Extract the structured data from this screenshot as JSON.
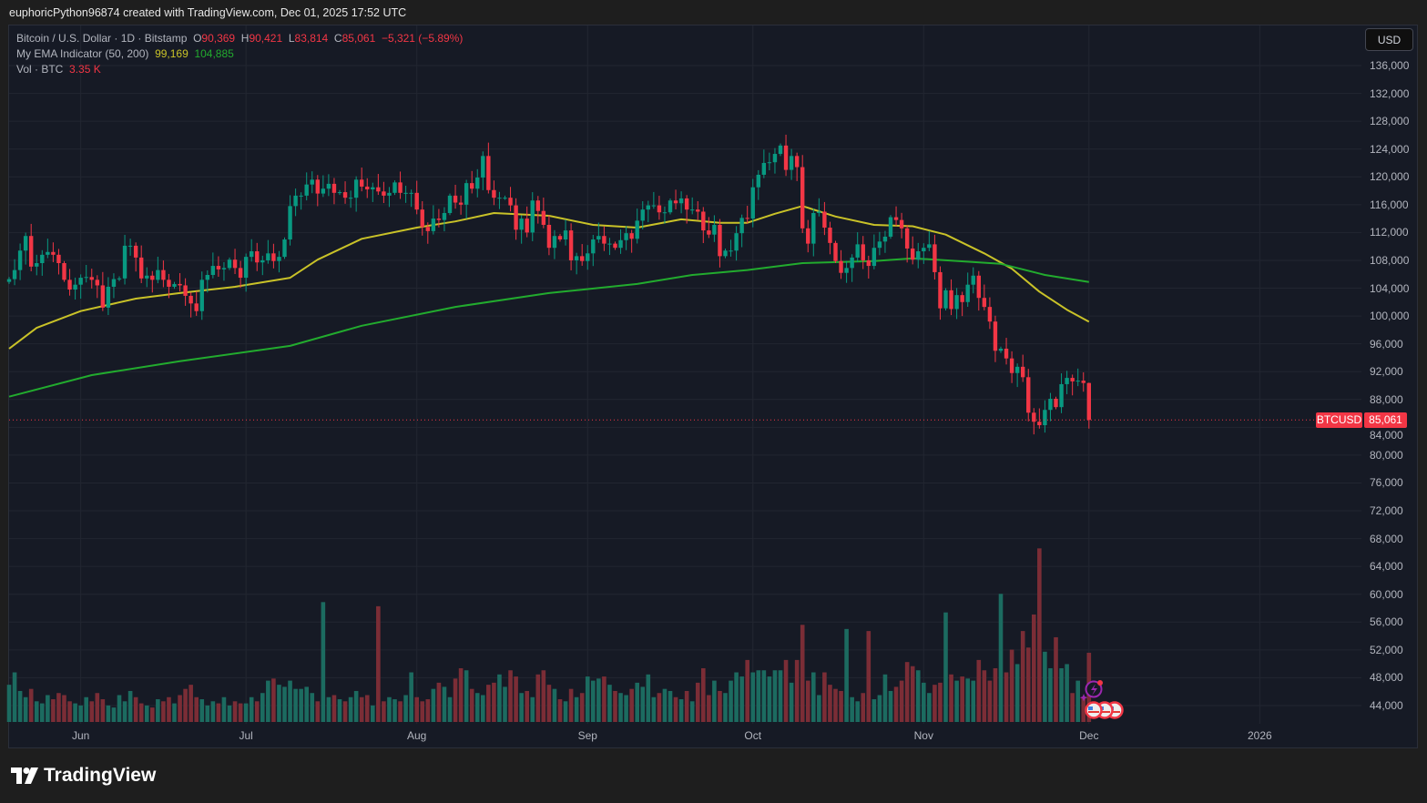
{
  "header": {
    "created_line": "euphoricPython96874 created with TradingView.com, Dec 01, 2025 17:52 UTC"
  },
  "legend": {
    "symbol": "Bitcoin / U.S. Dollar · 1D · Bitstamp",
    "o_label": "O",
    "o": "90,369",
    "h_label": "H",
    "h": "90,421",
    "l_label": "L",
    "l": "83,814",
    "c_label": "C",
    "c": "85,061",
    "change": "−5,321 (−5.89%)",
    "ema_name": "My EMA Indicator (50, 200)",
    "ema50": "99,169",
    "ema200": "104,885",
    "vol_name": "Vol · BTC",
    "vol": "3.35 K"
  },
  "currency_button": "USD",
  "price_label": {
    "symbol": "BTCUSD",
    "value": "85,061"
  },
  "brand": "TradingView",
  "colors": {
    "up": "#089981",
    "down": "#f23645",
    "ema50": "#c9c228",
    "ema200": "#22ab2e",
    "background": "#161a25",
    "grid": "#222631"
  },
  "chart_data": {
    "type": "candlestick",
    "title": "Bitcoin / U.S. Dollar · 1D · Bitstamp",
    "ylim": [
      42000,
      138000
    ],
    "grid": true,
    "y_ticks": [
      "136,000",
      "132,000",
      "128,000",
      "124,000",
      "120,000",
      "116,000",
      "112,000",
      "108,000",
      "104,000",
      "100,000",
      "96,000",
      "92,000",
      "88,000",
      "84,000",
      "80,000",
      "76,000",
      "72,000",
      "68,000",
      "64,000",
      "60,000",
      "56,000",
      "52,000",
      "48,000",
      "44,000"
    ],
    "x_ticks": [
      {
        "label": "Jun",
        "date": "2025-06-01"
      },
      {
        "label": "Jul",
        "date": "2025-07-01"
      },
      {
        "label": "Aug",
        "date": "2025-08-01"
      },
      {
        "label": "Sep",
        "date": "2025-09-01"
      },
      {
        "label": "Oct",
        "date": "2025-10-01"
      },
      {
        "label": "Nov",
        "date": "2025-11-01"
      },
      {
        "label": "Dec",
        "date": "2025-12-01"
      },
      {
        "label": "2026",
        "date": "2026-01-01"
      }
    ],
    "last_candle": {
      "open": 90369,
      "high": 90421,
      "low": 83814,
      "close": 85061
    },
    "close": [
      105300,
      106600,
      109400,
      111500,
      107100,
      107600,
      108800,
      109200,
      108800,
      107600,
      105200,
      103800,
      104500,
      105500,
      105600,
      105200,
      104400,
      101200,
      104200,
      105300,
      105400,
      110100,
      110100,
      108400,
      105400,
      105800,
      105200,
      106600,
      105200,
      104200,
      104600,
      104400,
      102900,
      101800,
      100700,
      105200,
      105900,
      107200,
      106700,
      106900,
      108100,
      106900,
      105500,
      108500,
      109300,
      107700,
      108000,
      109000,
      107900,
      108500,
      111000,
      115800,
      117300,
      117300,
      118900,
      119600,
      117600,
      118300,
      119000,
      117700,
      117800,
      117000,
      117000,
      119600,
      118600,
      118200,
      118500,
      117900,
      117300,
      117700,
      119200,
      117700,
      117700,
      117700,
      115300,
      112800,
      112200,
      114000,
      113800,
      114800,
      117300,
      116300,
      116000,
      119100,
      118300,
      119900,
      123000,
      118100,
      117000,
      117000,
      117000,
      115900,
      112400,
      114000,
      112000,
      116600,
      115100,
      113100,
      109800,
      111500,
      111000,
      112300,
      108000,
      108600,
      107900,
      109000,
      111000,
      111500,
      110400,
      110400,
      109800,
      110900,
      111900,
      111100,
      113700,
      115300,
      115900,
      115900,
      114900,
      114900,
      116600,
      116200,
      116900,
      115300,
      115300,
      115000,
      112300,
      111700,
      113100,
      108600,
      109400,
      109400,
      111900,
      114100,
      114000,
      118500,
      120300,
      122000,
      122100,
      123300,
      124500,
      121000,
      123000,
      121400,
      112600,
      110400,
      114800,
      115000,
      112700,
      110500,
      107900,
      106200,
      106900,
      108400,
      110300,
      108000,
      107200,
      109800,
      110700,
      111400,
      114200,
      113800,
      112600,
      109700,
      108100,
      109300,
      109800,
      110300,
      106300,
      101100,
      103700,
      101000,
      103000,
      102000,
      104500,
      105800,
      102600,
      101300,
      99200,
      95000,
      95300,
      93900,
      91800,
      92700,
      91200,
      86100,
      84800,
      84300,
      86500,
      88100,
      86900,
      90200,
      91100,
      90600,
      90700,
      90369,
      85061
    ],
    "volume_btc_k": [
      1.8,
      2.4,
      1.5,
      1.2,
      1.6,
      1.0,
      0.9,
      1.3,
      1.1,
      1.4,
      1.3,
      1.0,
      0.9,
      0.8,
      1.2,
      1.0,
      1.4,
      1.1,
      0.8,
      0.7,
      1.3,
      1.0,
      1.5,
      1.2,
      0.9,
      0.8,
      0.7,
      1.1,
      1.0,
      1.2,
      0.9,
      1.3,
      1.6,
      1.8,
      1.2,
      1.1,
      0.8,
      1.0,
      0.9,
      1.2,
      0.8,
      1.0,
      0.9,
      0.9,
      1.2,
      1.0,
      1.4,
      2.0,
      2.1,
      1.8,
      1.7,
      2.0,
      1.6,
      1.6,
      1.7,
      1.4,
      1.0,
      5.8,
      1.2,
      1.3,
      1.1,
      1.0,
      1.2,
      1.5,
      1.2,
      1.3,
      0.8,
      5.6,
      1.0,
      1.2,
      1.1,
      1.0,
      1.3,
      2.4,
      1.2,
      1.0,
      1.1,
      1.6,
      1.9,
      1.7,
      1.2,
      2.1,
      2.6,
      2.5,
      1.6,
      1.4,
      1.3,
      1.8,
      1.9,
      2.3,
      1.7,
      2.5,
      2.2,
      1.4,
      1.5,
      1.2,
      2.3,
      2.5,
      1.8,
      1.6,
      1.1,
      1.0,
      1.6,
      1.2,
      1.4,
      2.2,
      2.0,
      2.1,
      2.2,
      1.8,
      1.5,
      1.4,
      1.3,
      1.6,
      1.9,
      1.7,
      2.3,
      1.2,
      1.4,
      1.6,
      1.5,
      1.2,
      1.1,
      1.5,
      1.0,
      1.9,
      2.6,
      1.3,
      2.0,
      1.5,
      1.4,
      2.0,
      2.4,
      2.2,
      3.0,
      2.4,
      2.5,
      2.5,
      2.2,
      2.5,
      2.5,
      3.0,
      1.9,
      3.0,
      4.7,
      2.0,
      2.4,
      1.3,
      2.4,
      1.8,
      1.6,
      1.5,
      4.5,
      1.2,
      1.0,
      1.4,
      4.4,
      1.1,
      1.3,
      2.3,
      1.5,
      1.7,
      2.0,
      2.9,
      2.7,
      2.5,
      1.9,
      1.4,
      1.8,
      1.9,
      5.3,
      2.3,
      2.0,
      2.2,
      2.1,
      2.0,
      3.0,
      2.5,
      2.0,
      2.6,
      6.2,
      2.4,
      3.5,
      2.8,
      4.4,
      3.6,
      5.2,
      8.4,
      3.4,
      2.6,
      4.1,
      2.6,
      2.8,
      1.4,
      2.0,
      1.2,
      3.35
    ],
    "series": [
      {
        "name": "My EMA Indicator (50, 200)",
        "period": 50,
        "points": [
          [
            "2025-05-19",
            95300
          ],
          [
            "2025-05-24",
            98300
          ],
          [
            "2025-06-01",
            100700
          ],
          [
            "2025-06-11",
            102500
          ],
          [
            "2025-06-19",
            103300
          ],
          [
            "2025-06-29",
            104200
          ],
          [
            "2025-07-09",
            105500
          ],
          [
            "2025-07-14",
            108100
          ],
          [
            "2025-07-22",
            111100
          ],
          [
            "2025-08-01",
            112700
          ],
          [
            "2025-08-08",
            113600
          ],
          [
            "2025-08-15",
            114800
          ],
          [
            "2025-08-25",
            114400
          ],
          [
            "2025-09-02",
            113100
          ],
          [
            "2025-09-10",
            112700
          ],
          [
            "2025-09-18",
            113900
          ],
          [
            "2025-09-25",
            113400
          ],
          [
            "2025-09-30",
            113400
          ],
          [
            "2025-10-05",
            114700
          ],
          [
            "2025-10-10",
            115800
          ],
          [
            "2025-10-16",
            114300
          ],
          [
            "2025-10-23",
            113100
          ],
          [
            "2025-10-30",
            112900
          ],
          [
            "2025-11-05",
            111700
          ],
          [
            "2025-11-12",
            109000
          ],
          [
            "2025-11-17",
            106800
          ],
          [
            "2025-11-22",
            103500
          ],
          [
            "2025-11-27",
            100900
          ],
          [
            "2025-12-01",
            99169
          ]
        ]
      },
      {
        "name": "My EMA Indicator (50, 200)",
        "period": 200,
        "points": [
          [
            "2025-05-19",
            88400
          ],
          [
            "2025-06-03",
            91500
          ],
          [
            "2025-06-19",
            93500
          ],
          [
            "2025-07-09",
            95700
          ],
          [
            "2025-07-22",
            98600
          ],
          [
            "2025-08-08",
            101300
          ],
          [
            "2025-08-25",
            103300
          ],
          [
            "2025-09-10",
            104600
          ],
          [
            "2025-09-20",
            105900
          ],
          [
            "2025-09-30",
            106600
          ],
          [
            "2025-10-10",
            107600
          ],
          [
            "2025-10-23",
            107900
          ],
          [
            "2025-10-30",
            108300
          ],
          [
            "2025-11-05",
            108000
          ],
          [
            "2025-11-15",
            107500
          ],
          [
            "2025-11-23",
            105900
          ],
          [
            "2025-12-01",
            104885
          ]
        ]
      }
    ]
  }
}
